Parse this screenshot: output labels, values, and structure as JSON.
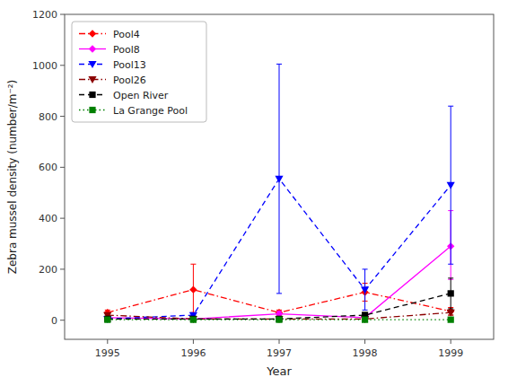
{
  "chart_data": {
    "type": "line",
    "xlabel": "Year",
    "ylabel": "Zebra mussel density (number/m⁻²)",
    "x": [
      1995,
      1996,
      1997,
      1998,
      1999
    ],
    "xlim": [
      1994.5,
      1999.5
    ],
    "xticks": [
      1995,
      1996,
      1997,
      1998,
      1999
    ],
    "ylim": [
      -75,
      1200
    ],
    "yticks": [
      0,
      200,
      400,
      600,
      800,
      1000,
      1200
    ],
    "grid": false,
    "legend": "upper left",
    "series": [
      {
        "name": "Pool4",
        "color": "#FF0000",
        "marker": "diamond",
        "line_style": "dashdot",
        "values": [
          30,
          120,
          30,
          110,
          35
        ],
        "error_minus": [
          10,
          90,
          10,
          35,
          15
        ],
        "error_plus": [
          10,
          100,
          10,
          35,
          15
        ]
      },
      {
        "name": "Pool8",
        "color": "#FF00FF",
        "marker": "diamond",
        "line_style": "solid",
        "values": [
          10,
          5,
          25,
          10,
          290
        ],
        "error_minus": [
          5,
          5,
          10,
          5,
          130
        ],
        "error_plus": [
          5,
          5,
          10,
          5,
          140
        ]
      },
      {
        "name": "Pool13",
        "color": "#0000FF",
        "marker": "triangle-down",
        "line_style": "dashed",
        "values": [
          5,
          20,
          555,
          120,
          530
        ],
        "error_minus": [
          5,
          5,
          450,
          80,
          310
        ],
        "error_plus": [
          5,
          5,
          450,
          80,
          310
        ]
      },
      {
        "name": "Pool26",
        "color": "#8B0000",
        "marker": "triangle-down",
        "line_style": "dashdot",
        "values": [
          20,
          5,
          5,
          5,
          30
        ],
        "error_minus": [
          5,
          5,
          5,
          5,
          10
        ],
        "error_plus": [
          5,
          5,
          5,
          5,
          10
        ]
      },
      {
        "name": "Open River",
        "color": "#000000",
        "marker": "square",
        "line_style": "dashed",
        "values": [
          5,
          5,
          5,
          20,
          105
        ],
        "error_minus": [
          3,
          3,
          3,
          10,
          60
        ],
        "error_plus": [
          3,
          3,
          3,
          10,
          60
        ]
      },
      {
        "name": "La Grange Pool",
        "color": "#008000",
        "marker": "square",
        "line_style": "dotted",
        "values": [
          2,
          2,
          2,
          2,
          2
        ],
        "error_minus": [
          1,
          1,
          1,
          1,
          1
        ],
        "error_plus": [
          1,
          1,
          1,
          1,
          1
        ]
      }
    ]
  }
}
